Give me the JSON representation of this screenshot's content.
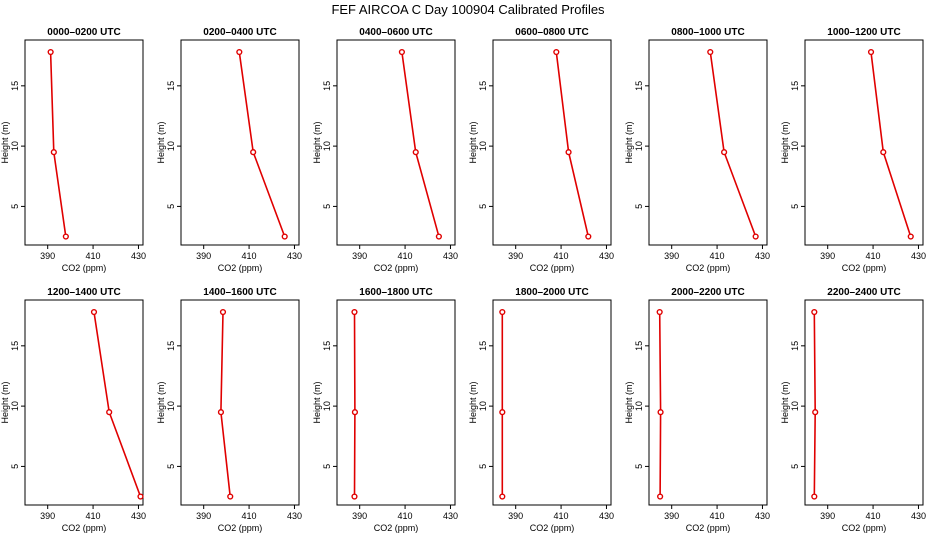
{
  "title": "FEF AIRCOA C  Day 100904  Calibrated Profiles",
  "chart_data": {
    "type": "line",
    "xlabel": "CO2 (ppm)",
    "ylabel": "Height (m)",
    "xlim": [
      380,
      432
    ],
    "ylim": [
      1.8,
      18.8
    ],
    "xticks": [
      390,
      410,
      430
    ],
    "yticks": [
      5,
      10,
      15
    ],
    "grid": false,
    "series_color": "#e00000",
    "panels": [
      {
        "title": "0000–0200 UTC",
        "x": [
          391.3,
          392.7,
          398.0
        ],
        "y": [
          17.8,
          9.5,
          2.5
        ]
      },
      {
        "title": "0200–0400 UTC",
        "x": [
          405.7,
          411.8,
          425.7
        ],
        "y": [
          17.8,
          9.5,
          2.5
        ]
      },
      {
        "title": "0400–0600 UTC",
        "x": [
          408.6,
          414.7,
          424.9
        ],
        "y": [
          17.8,
          9.5,
          2.5
        ]
      },
      {
        "title": "0600–0800 UTC",
        "x": [
          407.9,
          413.3,
          422.0
        ],
        "y": [
          17.8,
          9.5,
          2.5
        ]
      },
      {
        "title": "0800–1000 UTC",
        "x": [
          407.0,
          413.1,
          427.0
        ],
        "y": [
          17.8,
          9.5,
          2.5
        ]
      },
      {
        "title": "1000–1200 UTC",
        "x": [
          409.1,
          414.5,
          426.6
        ],
        "y": [
          17.8,
          9.5,
          2.5
        ]
      },
      {
        "title": "1200–1400 UTC",
        "x": [
          410.4,
          417.1,
          430.9
        ],
        "y": [
          17.8,
          9.5,
          2.5
        ]
      },
      {
        "title": "1400–1600 UTC",
        "x": [
          398.5,
          397.6,
          401.7
        ],
        "y": [
          17.8,
          9.5,
          2.5
        ]
      },
      {
        "title": "1600–1800 UTC",
        "x": [
          387.7,
          387.9,
          387.7
        ],
        "y": [
          17.8,
          9.5,
          2.5
        ]
      },
      {
        "title": "1800–2000 UTC",
        "x": [
          384.1,
          384.1,
          384.1
        ],
        "y": [
          17.8,
          9.5,
          2.5
        ]
      },
      {
        "title": "2000–2200 UTC",
        "x": [
          384.7,
          385.1,
          384.9
        ],
        "y": [
          17.8,
          9.5,
          2.5
        ]
      },
      {
        "title": "2200–2400 UTC",
        "x": [
          384.1,
          384.5,
          384.1
        ],
        "y": [
          17.8,
          9.5,
          2.5
        ]
      }
    ]
  }
}
